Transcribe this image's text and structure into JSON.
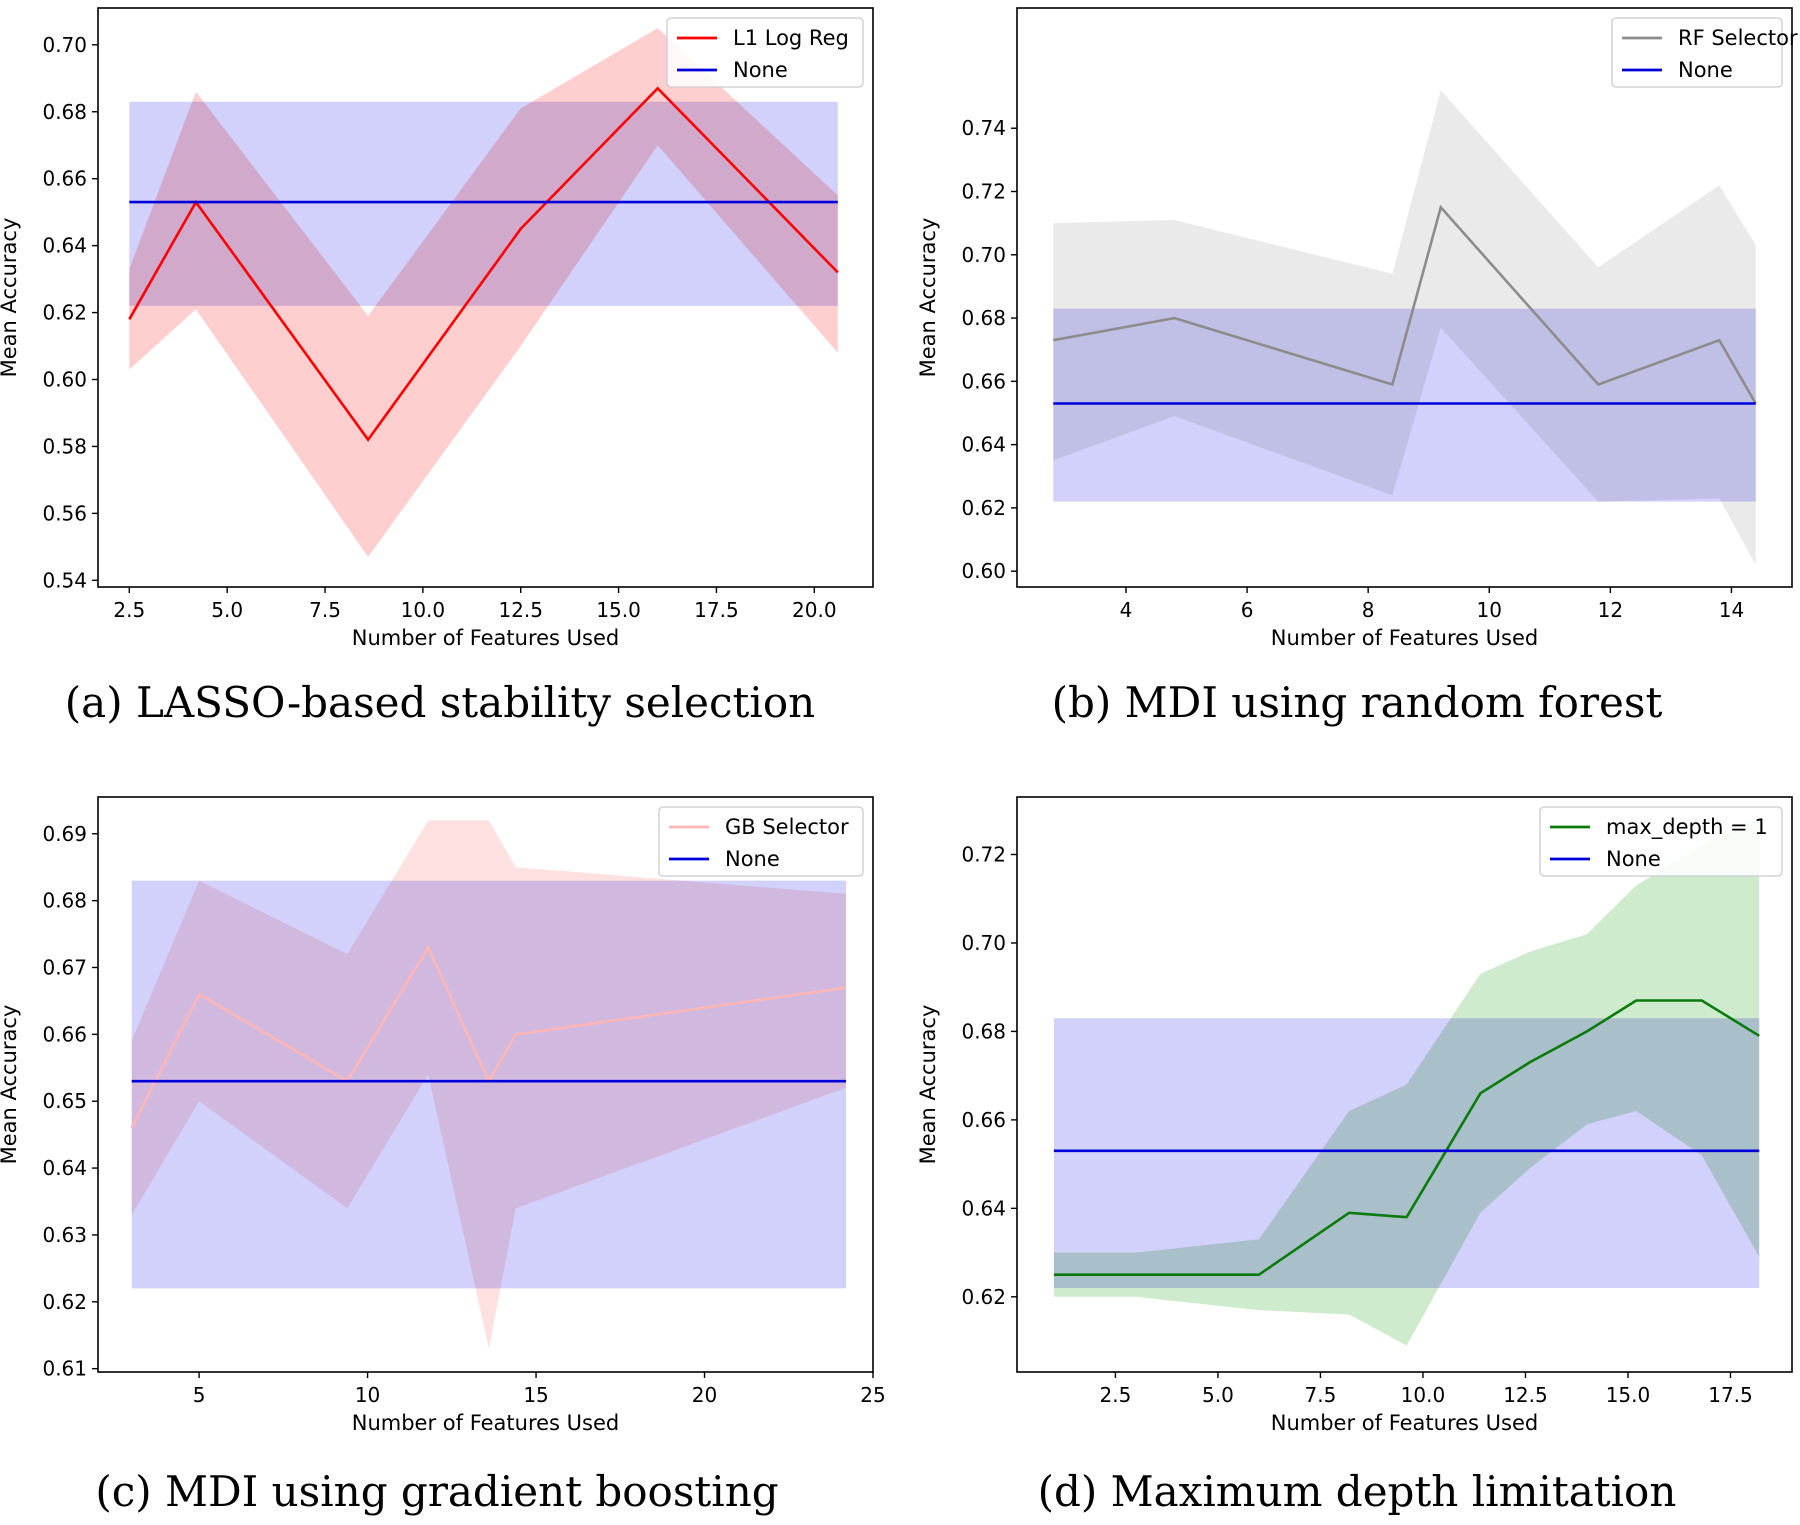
{
  "chart_data": [
    {
      "type": "line",
      "caption": "(a) LASSO-based stability selection",
      "xlabel": "Number of Features Used",
      "ylabel": "Mean Accuracy",
      "xlim": [
        1.7,
        21.5
      ],
      "ylim": [
        0.538,
        0.711
      ],
      "xticks": [
        2.5,
        5.0,
        7.5,
        10.0,
        12.5,
        15.0,
        17.5,
        20.0
      ],
      "xtick_labels": [
        "2.5",
        "5.0",
        "7.5",
        "10.0",
        "12.5",
        "15.0",
        "17.5",
        "20.0"
      ],
      "yticks": [
        0.54,
        0.56,
        0.58,
        0.6,
        0.62,
        0.64,
        0.66,
        0.68,
        0.7
      ],
      "ytick_labels": [
        "0.54",
        "0.56",
        "0.58",
        "0.60",
        "0.62",
        "0.64",
        "0.66",
        "0.68",
        "0.70"
      ],
      "legend_position": "top-right",
      "series": [
        {
          "name": "L1 Log Reg",
          "color": "#ff0000",
          "band_color": "#ffc6c6",
          "x": [
            2.5,
            4.2,
            8.6,
            12.5,
            16.0,
            20.6
          ],
          "y": [
            0.618,
            0.653,
            0.582,
            0.645,
            0.687,
            0.632
          ],
          "lower": [
            0.603,
            0.621,
            0.547,
            0.61,
            0.67,
            0.608
          ],
          "upper": [
            0.633,
            0.686,
            0.619,
            0.681,
            0.705,
            0.655
          ]
        },
        {
          "name": "None",
          "color": "#0000dd",
          "band_color": "#c9c9fc",
          "x": [
            2.5,
            20.6
          ],
          "y": [
            0.653,
            0.653
          ],
          "lower": [
            0.622,
            0.622
          ],
          "upper": [
            0.683,
            0.683
          ]
        }
      ]
    },
    {
      "type": "line",
      "caption": "(b) MDI using random forest",
      "xlabel": "Number of Features Used",
      "ylabel": "Mean Accuracy",
      "xlim": [
        2.2,
        15.0
      ],
      "ylim": [
        0.595,
        0.778
      ],
      "xticks": [
        4,
        6,
        8,
        10,
        12,
        14
      ],
      "xtick_labels": [
        "4",
        "6",
        "8",
        "10",
        "12",
        "14"
      ],
      "yticks": [
        0.6,
        0.62,
        0.64,
        0.66,
        0.68,
        0.7,
        0.72,
        0.74
      ],
      "ytick_labels": [
        "0.60",
        "0.62",
        "0.64",
        "0.66",
        "0.68",
        "0.70",
        "0.72",
        "0.74"
      ],
      "legend_position": "top-right",
      "series": [
        {
          "name": "RF Selector",
          "color": "#8c8c8c",
          "band_color": "#e6e6e6",
          "x": [
            2.8,
            4.8,
            8.4,
            9.2,
            11.8,
            13.8,
            14.4
          ],
          "y": [
            0.673,
            0.68,
            0.659,
            0.715,
            0.659,
            0.673,
            0.653
          ],
          "lower": [
            0.635,
            0.649,
            0.624,
            0.677,
            0.622,
            0.623,
            0.602
          ],
          "upper": [
            0.71,
            0.711,
            0.694,
            0.752,
            0.696,
            0.722,
            0.703
          ]
        },
        {
          "name": "None",
          "color": "#0000dd",
          "band_color": "#c9c9fc",
          "x": [
            2.8,
            14.4
          ],
          "y": [
            0.653,
            0.653
          ],
          "lower": [
            0.622,
            0.622
          ],
          "upper": [
            0.683,
            0.683
          ]
        }
      ]
    },
    {
      "type": "line",
      "caption": "(c) MDI using gradient boosting",
      "xlabel": "Number of Features Used",
      "ylabel": "Mean Accuracy",
      "xlim": [
        2.0,
        25.0
      ],
      "ylim": [
        0.6095,
        0.6955
      ],
      "xticks": [
        5,
        10,
        15,
        20,
        25
      ],
      "xtick_labels": [
        "5",
        "10",
        "15",
        "20",
        "25"
      ],
      "yticks": [
        0.61,
        0.62,
        0.63,
        0.64,
        0.65,
        0.66,
        0.67,
        0.68,
        0.69
      ],
      "ytick_labels": [
        "0.61",
        "0.62",
        "0.63",
        "0.64",
        "0.65",
        "0.66",
        "0.67",
        "0.68",
        "0.69"
      ],
      "legend_position": "top-right",
      "series": [
        {
          "name": "GB Selector",
          "color": "#ffb6b6",
          "band_color": "#ffdcdc",
          "x": [
            3.0,
            5.0,
            9.4,
            11.8,
            13.6,
            14.4,
            24.2
          ],
          "y": [
            0.646,
            0.666,
            0.653,
            0.673,
            0.653,
            0.66,
            0.667
          ],
          "lower": [
            0.633,
            0.65,
            0.634,
            0.654,
            0.613,
            0.634,
            0.652
          ],
          "upper": [
            0.659,
            0.683,
            0.672,
            0.692,
            0.692,
            0.685,
            0.681
          ]
        },
        {
          "name": "None",
          "color": "#0000dd",
          "band_color": "#c9c9fc",
          "x": [
            3.0,
            24.2
          ],
          "y": [
            0.653,
            0.653
          ],
          "lower": [
            0.622,
            0.622
          ],
          "upper": [
            0.683,
            0.683
          ]
        }
      ]
    },
    {
      "type": "line",
      "caption": "(d) Maximum depth limitation",
      "xlabel": "Number of Features Used",
      "ylabel": "Mean Accuracy",
      "xlim": [
        0.1,
        19.0
      ],
      "ylim": [
        0.603,
        0.733
      ],
      "xticks": [
        2.5,
        5.0,
        7.5,
        10.0,
        12.5,
        15.0,
        17.5
      ],
      "xtick_labels": [
        "2.5",
        "5.0",
        "7.5",
        "10.0",
        "12.5",
        "15.0",
        "17.5"
      ],
      "yticks": [
        0.62,
        0.64,
        0.66,
        0.68,
        0.7,
        0.72
      ],
      "ytick_labels": [
        "0.62",
        "0.64",
        "0.66",
        "0.68",
        "0.70",
        "0.72"
      ],
      "legend_position": "top-right",
      "series": [
        {
          "name": "max_depth = 1",
          "color": "#0a7a0a",
          "band_color": "#c6e8c6",
          "x": [
            1.0,
            3.0,
            6.0,
            8.2,
            9.6,
            11.4,
            12.6,
            14.0,
            15.2,
            16.8,
            18.2
          ],
          "y": [
            0.625,
            0.625,
            0.625,
            0.639,
            0.638,
            0.666,
            0.673,
            0.68,
            0.687,
            0.687,
            0.679
          ],
          "lower": [
            0.62,
            0.62,
            0.617,
            0.616,
            0.609,
            0.639,
            0.649,
            0.659,
            0.662,
            0.652,
            0.629
          ],
          "upper": [
            0.63,
            0.63,
            0.633,
            0.662,
            0.668,
            0.693,
            0.698,
            0.702,
            0.713,
            0.722,
            0.728
          ]
        },
        {
          "name": "None",
          "color": "#0000dd",
          "band_color": "#c9c9fc",
          "x": [
            1.0,
            18.2
          ],
          "y": [
            0.653,
            0.653
          ],
          "lower": [
            0.622,
            0.622
          ],
          "upper": [
            0.683,
            0.683
          ]
        }
      ]
    }
  ]
}
